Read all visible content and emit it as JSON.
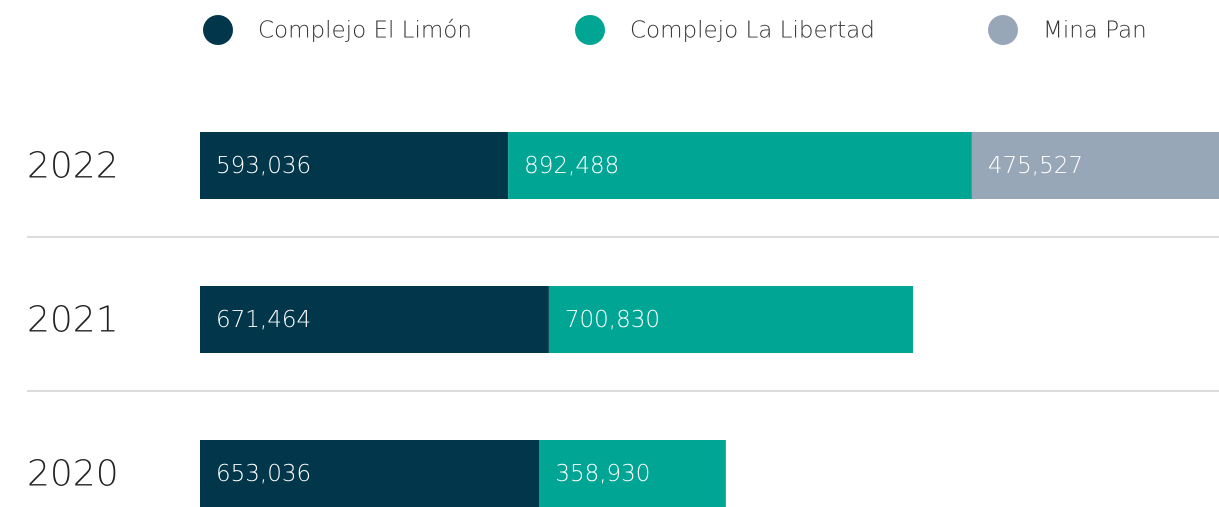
{
  "chart_data": {
    "type": "stacked-bar-horizontal",
    "categories": [
      "2022",
      "2021",
      "2020"
    ],
    "series": [
      {
        "name": "Complejo El Limón",
        "color": "#02364a",
        "values": [
          593036,
          671464,
          653036
        ],
        "value_labels": [
          "593,036",
          "671,464",
          "653,036"
        ]
      },
      {
        "name": "Complejo La Libertad",
        "color": "#00a593",
        "values": [
          892488,
          700830,
          358930
        ],
        "value_labels": [
          "892,488",
          "700,830",
          "358,930"
        ]
      },
      {
        "name": "Mina Pan",
        "color": "#98a7b8",
        "values": [
          475527,
          null,
          null
        ],
        "value_labels": [
          "475,527",
          null,
          null
        ]
      }
    ]
  }
}
